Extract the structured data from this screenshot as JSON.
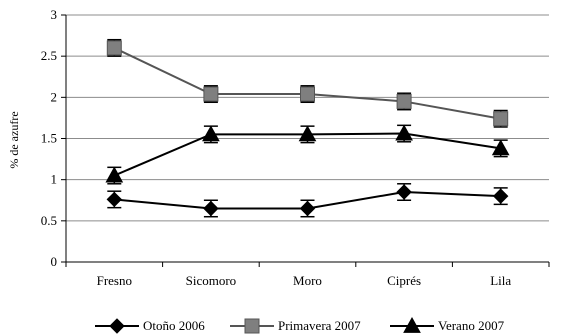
{
  "chart_data": {
    "type": "line",
    "title": "",
    "xlabel": "",
    "ylabel": "% de azufre",
    "ylim": [
      0,
      3
    ],
    "yticks": [
      0,
      0.5,
      1,
      1.5,
      2,
      2.5,
      3
    ],
    "ytick_labels": [
      "0",
      "0.5",
      "1",
      "1.5",
      "2",
      "2.5",
      "3"
    ],
    "categories": [
      "Fresno",
      "Sicomoro",
      "Moro",
      "Ciprés",
      "Lila"
    ],
    "grid": "horizontal",
    "legend_position": "bottom",
    "series": [
      {
        "name": "Otoño 2006",
        "marker": "diamond",
        "color": "#000000",
        "values": [
          0.76,
          0.65,
          0.65,
          0.85,
          0.8
        ],
        "errors": [
          0.1,
          0.1,
          0.1,
          0.1,
          0.1
        ]
      },
      {
        "name": "Primavera 2007",
        "marker": "square",
        "color": "#555555",
        "values": [
          2.6,
          2.04,
          2.04,
          1.95,
          1.74
        ],
        "errors": [
          0.1,
          0.1,
          0.1,
          0.1,
          0.1
        ]
      },
      {
        "name": "Verano 2007",
        "marker": "triangle",
        "color": "#000000",
        "values": [
          1.05,
          1.55,
          1.55,
          1.56,
          1.38
        ],
        "errors": [
          0.1,
          0.1,
          0.1,
          0.1,
          0.1
        ]
      }
    ]
  }
}
